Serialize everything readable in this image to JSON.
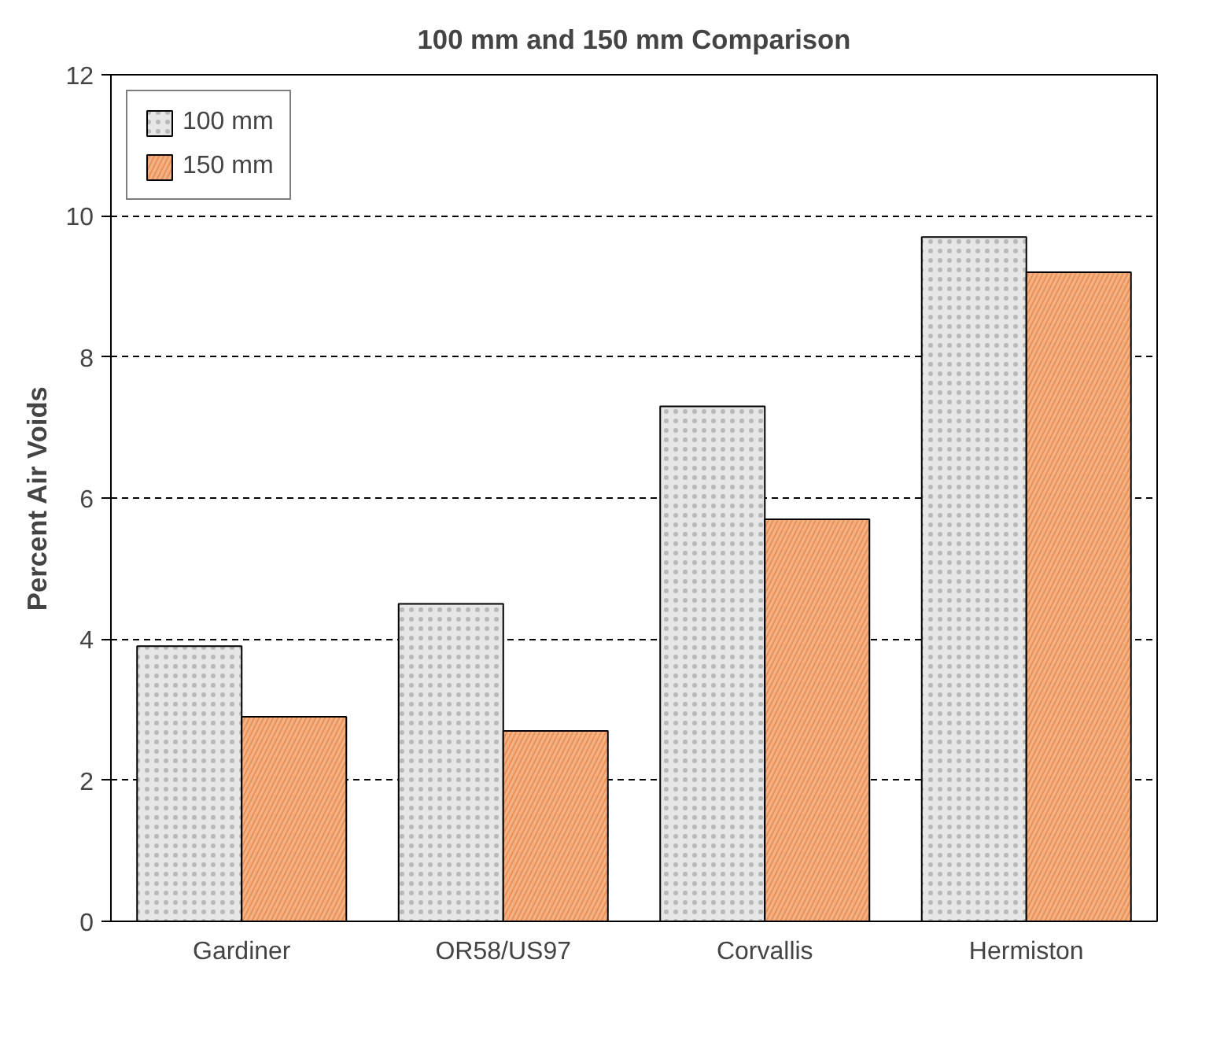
{
  "chart_data": {
    "type": "bar",
    "title": "100 mm and 150 mm Comparison",
    "ylabel": "Percent Air Voids",
    "categories": [
      "Gardiner",
      "OR58/US97",
      "Corvallis",
      "Hermiston"
    ],
    "series": [
      {
        "name": "100 mm",
        "color": "#e6e6e6",
        "values": [
          3.9,
          4.5,
          7.3,
          9.7
        ]
      },
      {
        "name": "150 mm",
        "color": "#f4b183",
        "values": [
          2.9,
          2.7,
          5.7,
          9.2
        ]
      }
    ],
    "ylim": [
      0,
      12
    ],
    "yticks": [
      0,
      2,
      4,
      6,
      8,
      10,
      12
    ],
    "grid": "y",
    "legend": "top left"
  }
}
